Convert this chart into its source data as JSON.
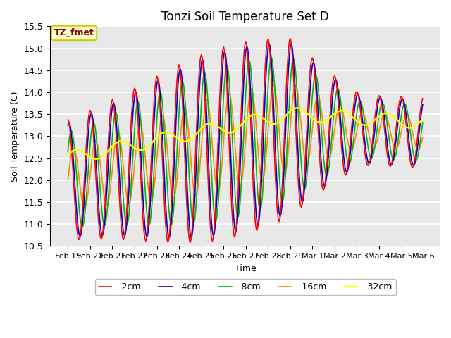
{
  "title": "Tonzi Soil Temperature Set D",
  "xlabel": "Time",
  "ylabel": "Soil Temperature (C)",
  "ylim": [
    10.5,
    15.5
  ],
  "bg_color": "#e8e8e8",
  "line_colors": {
    "-2cm": "#ff0000",
    "-4cm": "#0000cc",
    "-8cm": "#00bb00",
    "-16cm": "#ff8800",
    "-32cm": "#ffff00"
  },
  "yticks": [
    10.5,
    11.0,
    11.5,
    12.0,
    12.5,
    13.0,
    13.5,
    14.0,
    14.5,
    15.0,
    15.5
  ],
  "legend_labels": [
    "-2cm",
    "-4cm",
    "-8cm",
    "-16cm",
    "-32cm"
  ],
  "figsize": [
    6.4,
    4.8
  ],
  "dpi": 100
}
